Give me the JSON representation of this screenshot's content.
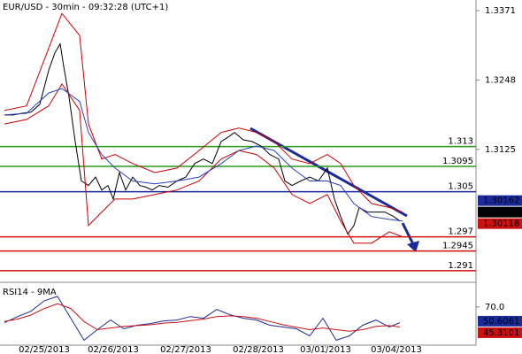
{
  "chart_data": [
    {
      "type": "line",
      "title": "EUR/USD - 30min - 09:32:28 (UTC+1)",
      "xlim": [
        0,
        538
      ],
      "ylim": [
        1.2891,
        1.3382
      ],
      "yticks": [
        1.3371,
        1.3248,
        1.3125
      ],
      "series": [
        {
          "color": "#000000",
          "x": [
            5,
            15,
            25,
            35,
            45,
            55,
            62,
            68,
            72,
            78,
            85,
            92,
            100,
            108,
            115,
            122,
            128,
            135,
            142,
            150,
            158,
            165,
            172,
            180,
            190,
            200,
            210,
            220,
            230,
            240,
            250,
            258,
            265,
            275,
            285,
            295,
            305,
            315,
            322,
            330,
            340,
            350,
            360,
            370,
            378,
            385,
            393,
            400,
            406,
            415,
            425,
            435,
            445,
            452
          ],
          "values": [
            1.3186,
            1.3186,
            1.3189,
            1.3191,
            1.3205,
            1.3265,
            1.3296,
            1.3312,
            1.3272,
            1.3218,
            1.3139,
            1.3069,
            1.3061,
            1.3076,
            1.3053,
            1.3061,
            1.3037,
            1.3084,
            1.3053,
            1.3076,
            1.3061,
            1.3058,
            1.3053,
            1.3061,
            1.3058,
            1.3069,
            1.3076,
            1.31,
            1.3108,
            1.31,
            1.3139,
            1.3147,
            1.3155,
            1.3142,
            1.3139,
            1.3131,
            1.3116,
            1.3108,
            1.3069,
            1.3061,
            1.3069,
            1.3076,
            1.3069,
            1.3092,
            1.3037,
            1.3006,
            1.2975,
            1.299,
            1.3022,
            1.3014,
            1.3014,
            1.3014,
            1.3006,
            1.2998
          ]
        },
        {
          "color": "#cc0000",
          "x": [
            5,
            30,
            55,
            70,
            90,
            100,
            115,
            130,
            150,
            175,
            200,
            225,
            250,
            270,
            290,
            310,
            330,
            350,
            370,
            385,
            400,
            420,
            440,
            455
          ],
          "values": [
            1.3194,
            1.3202,
            1.3304,
            1.3366,
            1.3327,
            1.317,
            1.3108,
            1.3116,
            1.31,
            1.3084,
            1.3092,
            1.3123,
            1.3155,
            1.3163,
            1.3155,
            1.3139,
            1.3108,
            1.31,
            1.3116,
            1.31,
            1.3061,
            1.3029,
            1.3022,
            1.3014
          ]
        },
        {
          "color": "#cc0000",
          "x": [
            5,
            30,
            55,
            70,
            90,
            100,
            115,
            130,
            150,
            175,
            200,
            225,
            250,
            270,
            290,
            310,
            330,
            350,
            370,
            385,
            400,
            420,
            440,
            455
          ],
          "values": [
            1.317,
            1.3178,
            1.3202,
            1.3241,
            1.3194,
            1.299,
            1.3014,
            1.3037,
            1.3037,
            1.3045,
            1.3053,
            1.3069,
            1.3108,
            1.3123,
            1.3116,
            1.3092,
            1.3045,
            1.3029,
            1.3045,
            1.2998,
            1.2959,
            1.2959,
            1.2979,
            1.297
          ]
        },
        {
          "color": "#2a3fc0",
          "x": [
            5,
            30,
            55,
            70,
            90,
            100,
            115,
            130,
            150,
            175,
            200,
            225,
            250,
            270,
            290,
            310,
            330,
            350,
            370,
            385,
            400,
            420,
            440,
            455
          ],
          "values": [
            1.3186,
            1.3189,
            1.3225,
            1.3233,
            1.321,
            1.3155,
            1.3116,
            1.3092,
            1.3069,
            1.3064,
            1.3069,
            1.3076,
            1.31,
            1.3123,
            1.3131,
            1.3123,
            1.3092,
            1.3069,
            1.3069,
            1.3061,
            1.3029,
            1.3006,
            1.3001,
            1.2998
          ]
        }
      ],
      "levels": [
        {
          "value": 1.313,
          "color": "#2e9a1e"
        },
        {
          "value": 1.3095,
          "color": "#2e9a1e"
        },
        {
          "value": 1.305,
          "color": "#1b2a9a"
        },
        {
          "value": 1.297,
          "color": "#cc1111"
        },
        {
          "value": 1.2945,
          "color": "#cc1111"
        },
        {
          "value": 1.291,
          "color": "#cc1111"
        }
      ],
      "price_markers": [
        {
          "value": 1.30162,
          "color": "#1b2a9a"
        },
        {
          "value": 1.30139,
          "color": "#000000"
        },
        {
          "value": 1.30118,
          "color": "#cc1111"
        }
      ]
    },
    {
      "type": "line",
      "title": "RSI14 - 9MA",
      "xlim": [
        0,
        538
      ],
      "ylim": [
        24,
        97
      ],
      "yticks": [
        {
          "value": 70,
          "label": "70.0"
        }
      ],
      "xticks": [
        {
          "value": 50,
          "label": "02/25/2013"
        },
        {
          "value": 128,
          "label": "02/26/2013"
        },
        {
          "value": 210,
          "label": "02/27/2013"
        },
        {
          "value": 292,
          "label": "02/28/2013"
        },
        {
          "value": 368,
          "label": "03/01/2013"
        },
        {
          "value": 448,
          "label": "03/04/2013"
        }
      ],
      "series": [
        {
          "color": "#1b2a9a",
          "x": [
            5,
            20,
            35,
            50,
            65,
            80,
            95,
            110,
            125,
            140,
            155,
            170,
            185,
            200,
            215,
            230,
            245,
            260,
            275,
            290,
            305,
            320,
            335,
            350,
            365,
            380,
            395,
            410,
            425,
            440,
            452
          ],
          "values": [
            50.6,
            58.1,
            64.6,
            77.5,
            82.9,
            56,
            29,
            42,
            53.8,
            43.1,
            47.4,
            49.5,
            52.8,
            53.8,
            58.1,
            56,
            66.8,
            60.3,
            56,
            53.8,
            47.4,
            45.2,
            43.1,
            34.4,
            56,
            29,
            34.4,
            47.4,
            53.8,
            45.2,
            50.6
          ]
        },
        {
          "color": "#cc1111",
          "x": [
            5,
            20,
            35,
            50,
            65,
            80,
            95,
            110,
            125,
            140,
            155,
            170,
            185,
            200,
            215,
            230,
            245,
            260,
            275,
            290,
            305,
            320,
            335,
            350,
            365,
            380,
            395,
            410,
            425,
            440,
            452
          ],
          "values": [
            52,
            55,
            60,
            68,
            74,
            68,
            52,
            42,
            44,
            46,
            47,
            48,
            50,
            51,
            53,
            55,
            58,
            59,
            58,
            56,
            52,
            48,
            45,
            42,
            44,
            42,
            40,
            42,
            46,
            47,
            45.3
          ]
        }
      ],
      "price_markers": [
        {
          "value": 50.6061,
          "color": "#1b2a9a"
        },
        {
          "value": 45.3101,
          "color": "#cc1111"
        }
      ]
    }
  ]
}
